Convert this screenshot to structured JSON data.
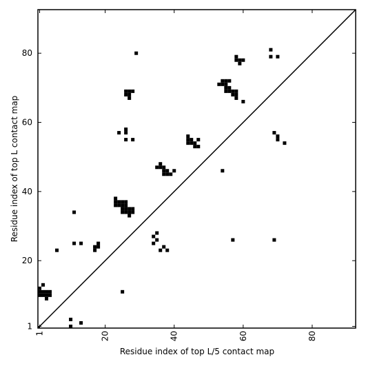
{
  "chart_data": {
    "type": "scatter",
    "xlabel": "Residue index of top L/5 contact map",
    "ylabel": "Residue index of top L contact map",
    "xlim": [
      0.5,
      92.6
    ],
    "ylim": [
      0.5,
      92.6
    ],
    "xticks": [
      1,
      20,
      40,
      60,
      80
    ],
    "yticks": [
      1,
      20,
      40,
      60,
      80
    ],
    "color": "#000000",
    "marker": "square",
    "diagonal": true,
    "x": [
      2,
      1,
      1,
      2,
      3,
      4,
      1,
      2,
      3,
      4,
      3,
      6,
      10,
      10,
      13,
      11,
      11,
      13,
      17,
      17,
      18,
      18,
      25,
      23,
      23,
      24,
      25,
      26,
      23,
      24,
      25,
      26,
      27,
      28,
      25,
      26,
      25,
      26,
      27,
      28,
      27,
      26,
      27,
      28,
      26,
      27,
      27,
      29,
      24,
      26,
      26,
      26,
      28,
      35,
      36,
      36,
      37,
      37,
      38,
      37,
      38,
      39,
      40,
      34,
      35,
      35,
      34,
      36,
      37,
      38,
      44,
      44,
      45,
      44,
      45,
      46,
      46,
      47,
      47,
      54,
      53,
      54,
      54,
      55,
      56,
      55,
      55,
      56,
      55,
      56,
      57,
      58,
      57,
      58,
      58,
      60,
      58,
      58,
      59,
      60,
      59,
      57,
      68,
      68,
      70,
      69,
      70,
      70,
      72,
      69
    ],
    "values": [
      13,
      12,
      11,
      11,
      11,
      11,
      10,
      10,
      10,
      10,
      9,
      23,
      3,
      1,
      2,
      34,
      25,
      25,
      23,
      24,
      24,
      25,
      11,
      38,
      37,
      37,
      37,
      37,
      36,
      36,
      36,
      36,
      35,
      35,
      35,
      35,
      34,
      34,
      34,
      34,
      33,
      69,
      69,
      69,
      68,
      68,
      67,
      80,
      57,
      58,
      57,
      55,
      55,
      47,
      47,
      48,
      47,
      46,
      46,
      45,
      45,
      45,
      46,
      27,
      28,
      26,
      25,
      23,
      24,
      23,
      56,
      55,
      55,
      54,
      54,
      54,
      53,
      53,
      55,
      46,
      71,
      71,
      72,
      72,
      72,
      71,
      70,
      70,
      69,
      69,
      69,
      69,
      68,
      68,
      67,
      66,
      79,
      78,
      78,
      78,
      77,
      26,
      81,
      79,
      79,
      57,
      56,
      55,
      54,
      26
    ]
  }
}
